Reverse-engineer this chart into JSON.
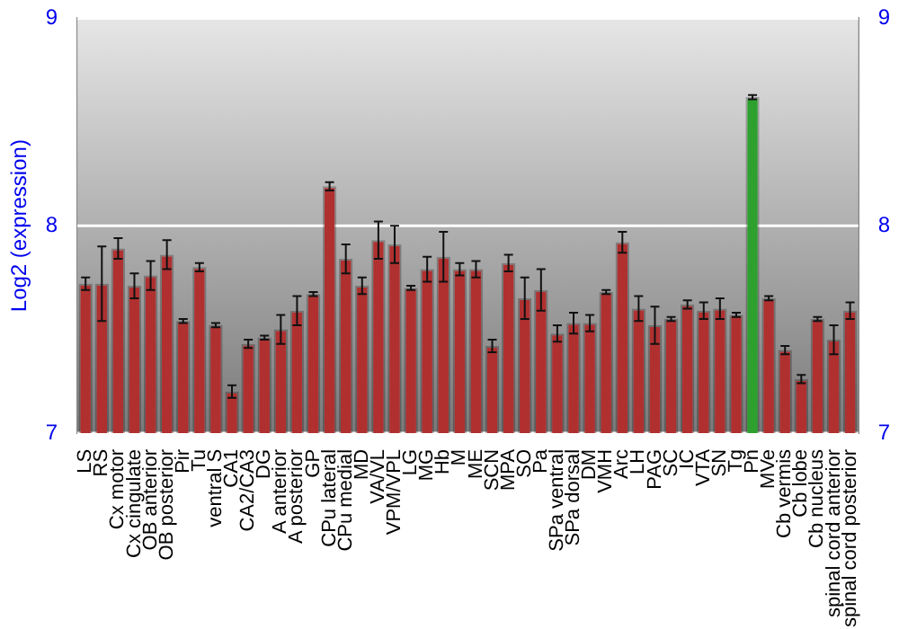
{
  "chart_data": {
    "type": "bar",
    "ylabel": "Log2 (expression)",
    "categories": [
      "LS",
      "RS",
      "Cx motor",
      "Cx cingulate",
      "OB anterior",
      "OB posterior",
      "Pir",
      "Tu",
      "ventral S",
      "CA1",
      "CA2/CA3",
      "DG",
      "A anterior",
      "A posterior",
      "GP",
      "CPu lateral",
      "CPu medial",
      "MD",
      "VA/VL",
      "VPM/VPL",
      "LG",
      "MG",
      "Hb",
      "M",
      "ME",
      "SCN",
      "MPA",
      "SO",
      "Pa",
      "SPa ventral",
      "SPa dorsal",
      "DM",
      "VMH",
      "Arc",
      "LH",
      "PAG",
      "SC",
      "IC",
      "VTA",
      "SN",
      "Tg",
      "Pn",
      "MVe",
      "Cb vermis",
      "Cb lobe",
      "Cb nucleus",
      "spinal cord anterior",
      "spinal cord posterior"
    ],
    "values": [
      7.72,
      7.72,
      7.89,
      7.71,
      7.76,
      7.86,
      7.54,
      7.8,
      7.52,
      7.2,
      7.43,
      7.46,
      7.5,
      7.59,
      7.67,
      8.19,
      7.84,
      7.71,
      7.93,
      7.91,
      7.7,
      7.79,
      7.85,
      7.79,
      7.79,
      7.42,
      7.82,
      7.65,
      7.69,
      7.48,
      7.53,
      7.53,
      7.68,
      7.92,
      7.6,
      7.52,
      7.55,
      7.62,
      7.59,
      7.6,
      7.57,
      8.62,
      7.65,
      7.4,
      7.26,
      7.55,
      7.45,
      7.59
    ],
    "errors": [
      0.03,
      0.18,
      0.05,
      0.06,
      0.07,
      0.07,
      0.01,
      0.02,
      0.01,
      0.03,
      0.02,
      0.01,
      0.07,
      0.07,
      0.01,
      0.02,
      0.07,
      0.04,
      0.09,
      0.09,
      0.01,
      0.06,
      0.12,
      0.03,
      0.04,
      0.03,
      0.04,
      0.1,
      0.1,
      0.04,
      0.05,
      0.04,
      0.01,
      0.05,
      0.06,
      0.09,
      0.01,
      0.02,
      0.04,
      0.05,
      0.01,
      0.01,
      0.01,
      0.02,
      0.02,
      0.01,
      0.07,
      0.04
    ],
    "colors": [
      "#b03030",
      "#b03030",
      "#b03030",
      "#b03030",
      "#b03030",
      "#b03030",
      "#b03030",
      "#b03030",
      "#b03030",
      "#b03030",
      "#b03030",
      "#b03030",
      "#b03030",
      "#b03030",
      "#b03030",
      "#b03030",
      "#b03030",
      "#b03030",
      "#b03030",
      "#b03030",
      "#b03030",
      "#b03030",
      "#b03030",
      "#b03030",
      "#b03030",
      "#b03030",
      "#b03030",
      "#b03030",
      "#b03030",
      "#b03030",
      "#b03030",
      "#b03030",
      "#b03030",
      "#b03030",
      "#b03030",
      "#b03030",
      "#b03030",
      "#b03030",
      "#b03030",
      "#b03030",
      "#b03030",
      "#2ea02e",
      "#b03030",
      "#b03030",
      "#b03030",
      "#b03030",
      "#b03030",
      "#b03030"
    ],
    "ylim": [
      7,
      9
    ],
    "yticks": [
      7,
      8,
      9
    ],
    "y2lim": [
      7,
      9
    ],
    "y2ticks": [
      7,
      8,
      9
    ],
    "grid": "y",
    "legend": false
  }
}
